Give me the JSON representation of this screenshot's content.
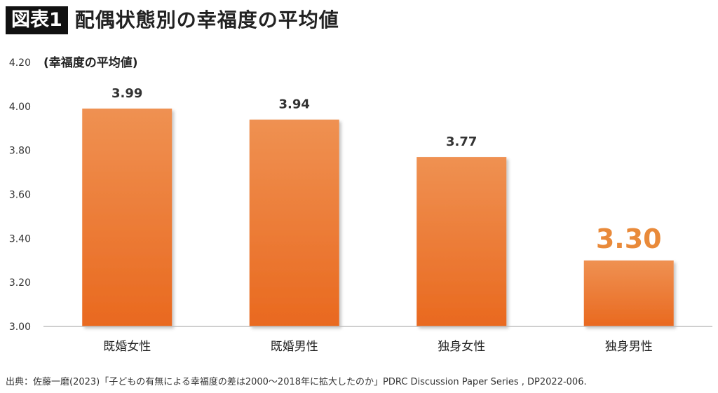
{
  "header": {
    "badge": "図表1",
    "title": "配偶状態別の幸福度の平均値"
  },
  "source": "出典：佐藤一磨(2023)「子どもの有無による幸福度の差は2000〜2018年に拡大したのか」PDRC Discussion Paper Series , DP2022-006.",
  "colors": {
    "bar_top": "#ef9152",
    "bar_bottom": "#e9691f",
    "highlight_label": "#e98a3a",
    "axis": "#bfbfbf"
  },
  "chart_data": {
    "type": "bar",
    "categories": [
      "既婚女性",
      "既婚男性",
      "独身女性",
      "独身男性"
    ],
    "values": [
      3.99,
      3.94,
      3.77,
      3.3
    ],
    "value_labels": [
      "3.99",
      "3.94",
      "3.77",
      "3.30"
    ],
    "highlight_index": 3,
    "ylabel": "(幸福度の平均値)",
    "ylim": [
      3.0,
      4.2
    ],
    "yticks": [
      "3.00",
      "3.20",
      "3.40",
      "3.60",
      "3.80",
      "4.00",
      "4.20"
    ],
    "ytick_values": [
      3.0,
      3.2,
      3.4,
      3.6,
      3.8,
      4.0,
      4.2
    ],
    "grid": false,
    "legend": "none"
  }
}
